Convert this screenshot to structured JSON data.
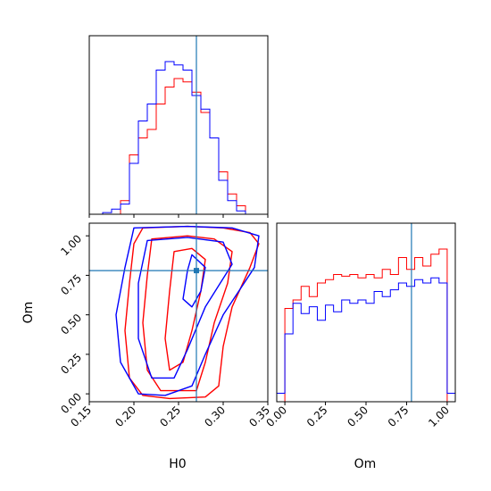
{
  "colors": {
    "series_red": "#ff0000",
    "series_blue": "#0000ff",
    "truth": "#1f77b4",
    "axes": "#000000"
  },
  "chart_data": [
    {
      "type": "histogram",
      "panel": "H0 marginal",
      "x_range": [
        0.15,
        0.35
      ],
      "y_ticks_shown": false,
      "truth_x": 0.27,
      "bin_edges": [
        0.155,
        0.165,
        0.175,
        0.185,
        0.195,
        0.205,
        0.215,
        0.225,
        0.235,
        0.245,
        0.255,
        0.265,
        0.275,
        0.285,
        0.295,
        0.305,
        0.315,
        0.325,
        0.335,
        0.345
      ],
      "series": [
        {
          "color": "red",
          "values": [
            0.0,
            0.0,
            0.0,
            0.08,
            0.35,
            0.45,
            0.5,
            0.65,
            0.75,
            0.8,
            0.78,
            0.72,
            0.6,
            0.45,
            0.25,
            0.12,
            0.05,
            0.0,
            0.0
          ]
        },
        {
          "color": "blue",
          "values": [
            0.0,
            0.01,
            0.03,
            0.06,
            0.3,
            0.55,
            0.65,
            0.85,
            0.9,
            0.88,
            0.85,
            0.7,
            0.62,
            0.45,
            0.2,
            0.08,
            0.02,
            0.0,
            0.0
          ]
        }
      ]
    },
    {
      "type": "contour",
      "panel": "H0 vs Om",
      "xlabel": "H0",
      "ylabel": "Om",
      "x_range": [
        0.15,
        0.35
      ],
      "y_range": [
        -0.05,
        1.08
      ],
      "x_ticks": [
        "0.15",
        "0.20",
        "0.25",
        "0.30",
        "0.35"
      ],
      "y_ticks": [
        "0.00",
        "0.25",
        "0.50",
        "0.75",
        "1.00"
      ],
      "truth": {
        "x": 0.27,
        "y": 0.78
      },
      "series": [
        {
          "color": "red",
          "contours": [
            [
              [
                0.21,
                1.05
              ],
              [
                0.26,
                1.06
              ],
              [
                0.3,
                1.05
              ],
              [
                0.33,
                1.02
              ],
              [
                0.34,
                0.95
              ],
              [
                0.33,
                0.8
              ],
              [
                0.31,
                0.55
              ],
              [
                0.3,
                0.3
              ],
              [
                0.295,
                0.05
              ],
              [
                0.28,
                -0.02
              ],
              [
                0.24,
                -0.03
              ],
              [
                0.21,
                -0.01
              ],
              [
                0.195,
                0.1
              ],
              [
                0.19,
                0.4
              ],
              [
                0.195,
                0.7
              ],
              [
                0.2,
                0.95
              ],
              [
                0.21,
                1.05
              ]
            ],
            [
              [
                0.22,
                0.98
              ],
              [
                0.26,
                1.0
              ],
              [
                0.29,
                0.98
              ],
              [
                0.31,
                0.9
              ],
              [
                0.305,
                0.7
              ],
              [
                0.29,
                0.45
              ],
              [
                0.28,
                0.2
              ],
              [
                0.27,
                0.02
              ],
              [
                0.23,
                0.02
              ],
              [
                0.215,
                0.15
              ],
              [
                0.21,
                0.45
              ],
              [
                0.215,
                0.75
              ],
              [
                0.22,
                0.98
              ]
            ],
            [
              [
                0.245,
                0.9
              ],
              [
                0.265,
                0.92
              ],
              [
                0.28,
                0.85
              ],
              [
                0.275,
                0.65
              ],
              [
                0.265,
                0.4
              ],
              [
                0.255,
                0.2
              ],
              [
                0.24,
                0.15
              ],
              [
                0.235,
                0.35
              ],
              [
                0.24,
                0.65
              ],
              [
                0.245,
                0.9
              ]
            ]
          ]
        },
        {
          "color": "blue",
          "contours": [
            [
              [
                0.2,
                1.05
              ],
              [
                0.26,
                1.06
              ],
              [
                0.31,
                1.05
              ],
              [
                0.34,
                1.0
              ],
              [
                0.335,
                0.8
              ],
              [
                0.3,
                0.5
              ],
              [
                0.28,
                0.25
              ],
              [
                0.265,
                0.05
              ],
              [
                0.235,
                -0.01
              ],
              [
                0.205,
                0.0
              ],
              [
                0.185,
                0.2
              ],
              [
                0.18,
                0.5
              ],
              [
                0.19,
                0.8
              ],
              [
                0.2,
                1.05
              ]
            ],
            [
              [
                0.215,
                0.97
              ],
              [
                0.26,
                0.99
              ],
              [
                0.3,
                0.96
              ],
              [
                0.31,
                0.82
              ],
              [
                0.28,
                0.55
              ],
              [
                0.26,
                0.28
              ],
              [
                0.245,
                0.1
              ],
              [
                0.22,
                0.1
              ],
              [
                0.205,
                0.35
              ],
              [
                0.205,
                0.7
              ],
              [
                0.215,
                0.97
              ]
            ],
            [
              [
                0.265,
                0.88
              ],
              [
                0.28,
                0.8
              ],
              [
                0.275,
                0.65
              ],
              [
                0.265,
                0.55
              ],
              [
                0.255,
                0.6
              ],
              [
                0.26,
                0.78
              ],
              [
                0.265,
                0.88
              ]
            ]
          ]
        }
      ]
    },
    {
      "type": "histogram",
      "panel": "Om marginal",
      "xlabel": "Om",
      "x_range": [
        -0.05,
        1.05
      ],
      "x_ticks": [
        "0.00",
        "0.25",
        "0.50",
        "0.75",
        "1.00"
      ],
      "y_ticks_shown": false,
      "truth_x": 0.78,
      "bin_edges": [
        -0.05,
        0.0,
        0.05,
        0.1,
        0.15,
        0.2,
        0.25,
        0.3,
        0.35,
        0.4,
        0.45,
        0.5,
        0.55,
        0.6,
        0.65,
        0.7,
        0.75,
        0.8,
        0.85,
        0.9,
        0.95,
        1.0,
        1.05
      ],
      "series": [
        {
          "color": "red",
          "values": [
            0.0,
            0.55,
            0.6,
            0.68,
            0.62,
            0.7,
            0.72,
            0.75,
            0.74,
            0.75,
            0.73,
            0.75,
            0.73,
            0.78,
            0.75,
            0.85,
            0.78,
            0.85,
            0.8,
            0.87,
            0.9,
            0.0
          ]
        },
        {
          "color": "blue",
          "values": [
            0.05,
            0.4,
            0.58,
            0.52,
            0.56,
            0.48,
            0.57,
            0.53,
            0.6,
            0.58,
            0.6,
            0.58,
            0.65,
            0.62,
            0.66,
            0.7,
            0.68,
            0.72,
            0.7,
            0.73,
            0.7,
            0.05
          ]
        }
      ]
    }
  ]
}
